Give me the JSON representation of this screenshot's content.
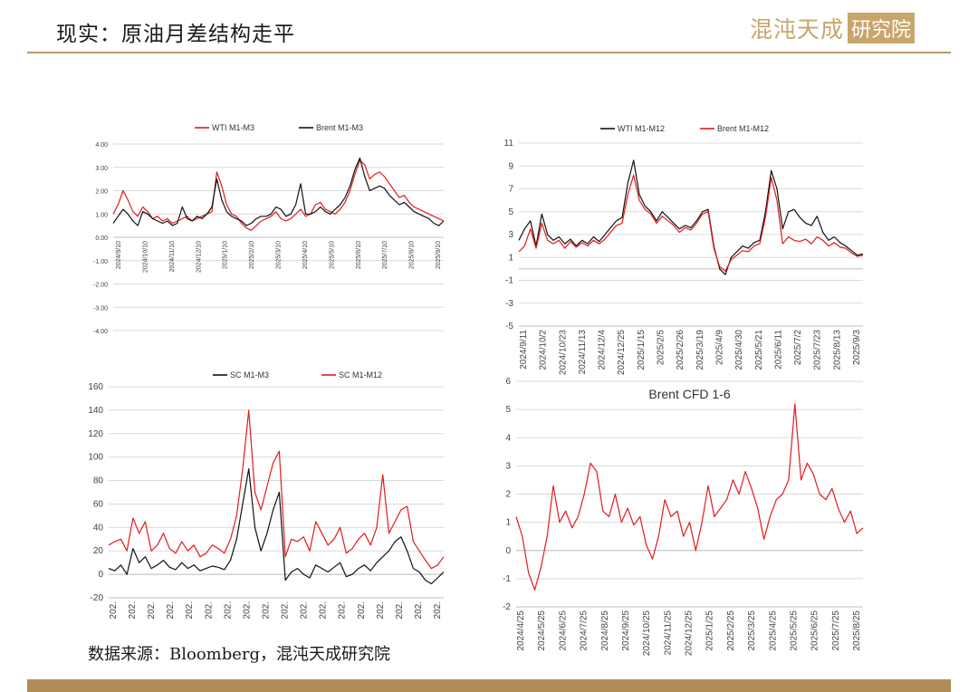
{
  "header": {
    "title": "现实：原油月差结构走平",
    "logo_main": "混沌天成",
    "logo_box": "研究院"
  },
  "footer": {
    "source": "数据来源：Bloomberg，混沌天成研究院"
  },
  "colors": {
    "red": "#e31a1c",
    "black": "#111111",
    "gold": "#b08d57"
  },
  "chart_data": [
    {
      "id": "c1",
      "type": "line",
      "title": "",
      "ylim": [
        -4,
        4
      ],
      "yticks": [
        "4.00",
        "3.00",
        "2.00",
        "1.00",
        "0.00",
        "-1.00",
        "-2.00",
        "-3.00",
        "-4.00"
      ],
      "ytick_values": [
        4,
        3,
        2,
        1,
        0,
        -1,
        -2,
        -3,
        -4
      ],
      "xticks": [
        "2024/9/10",
        "2024/10/10",
        "2024/11/10",
        "2024/12/10",
        "2025/1/10",
        "2025/2/10",
        "2025/3/10",
        "2025/4/10",
        "2025/5/10",
        "2025/6/10",
        "2025/7/10",
        "2025/8/10",
        "2025/9/10"
      ],
      "legend_position": "top",
      "series": [
        {
          "name": "WTI M1-M3",
          "color": "#e31a1c",
          "values": [
            1.0,
            1.4,
            2.0,
            1.6,
            1.1,
            0.9,
            1.3,
            1.1,
            0.8,
            0.9,
            0.7,
            0.8,
            0.6,
            0.7,
            0.8,
            0.9,
            0.7,
            0.8,
            0.9,
            1.0,
            1.1,
            2.8,
            2.2,
            1.4,
            1.0,
            0.9,
            0.6,
            0.4,
            0.3,
            0.5,
            0.7,
            0.8,
            0.9,
            1.1,
            0.8,
            0.7,
            0.8,
            1.0,
            1.2,
            0.9,
            1.0,
            1.4,
            1.5,
            1.2,
            1.1,
            1.0,
            1.2,
            1.5,
            2.0,
            2.7,
            3.3,
            3.1,
            2.5,
            2.7,
            2.8,
            2.6,
            2.3,
            2.0,
            1.7,
            1.8,
            1.5,
            1.3,
            1.2,
            1.1,
            1.0,
            0.9,
            0.8,
            0.7
          ]
        },
        {
          "name": "Brent M1-M3",
          "color": "#111111",
          "values": [
            0.6,
            0.9,
            1.2,
            1.0,
            0.7,
            0.5,
            1.1,
            1.0,
            0.8,
            0.7,
            0.6,
            0.7,
            0.5,
            0.6,
            1.3,
            0.8,
            0.7,
            0.9,
            0.8,
            1.0,
            1.3,
            2.5,
            1.6,
            1.1,
            0.9,
            0.8,
            0.7,
            0.5,
            0.6,
            0.8,
            0.9,
            0.9,
            1.0,
            1.3,
            1.2,
            0.9,
            1.0,
            1.4,
            2.3,
            1.0,
            1.0,
            1.1,
            1.3,
            1.1,
            1.0,
            1.2,
            1.4,
            1.7,
            2.2,
            2.9,
            3.4,
            2.6,
            2.0,
            2.1,
            2.2,
            2.1,
            1.8,
            1.6,
            1.4,
            1.5,
            1.3,
            1.1,
            1.0,
            0.9,
            0.8,
            0.6,
            0.5,
            0.7
          ]
        }
      ]
    },
    {
      "id": "c2",
      "type": "line",
      "title": "",
      "ylim": [
        -5,
        11
      ],
      "yticks": [
        "11",
        "9",
        "7",
        "5",
        "3",
        "1",
        "-1",
        "-3",
        "-5"
      ],
      "ytick_values": [
        11,
        9,
        7,
        5,
        3,
        1,
        -1,
        -3,
        -5
      ],
      "xticks": [
        "2024/9/11",
        "2024/10/2",
        "2024/10/23",
        "2024/11/13",
        "2024/12/4",
        "2024/12/25",
        "2025/1/15",
        "2025/2/5",
        "2025/2/26",
        "2025/3/19",
        "2025/4/9",
        "2025/4/30",
        "2025/5/21",
        "2025/6/11",
        "2025/7/2",
        "2025/7/23",
        "2025/8/13",
        "2025/9/3"
      ],
      "legend_position": "top",
      "series": [
        {
          "name": "WTI M1-M12",
          "color": "#111111",
          "values": [
            2.5,
            3.5,
            4.2,
            2.0,
            4.8,
            3.0,
            2.5,
            2.8,
            2.2,
            2.6,
            2.0,
            2.5,
            2.2,
            2.8,
            2.4,
            3.0,
            3.6,
            4.2,
            4.5,
            7.5,
            9.5,
            6.5,
            5.5,
            5.0,
            4.2,
            5.0,
            4.5,
            4.0,
            3.5,
            3.8,
            3.6,
            4.2,
            5.0,
            5.2,
            2.0,
            0.0,
            -0.5,
            1.0,
            1.5,
            2.0,
            1.8,
            2.3,
            2.5,
            5.0,
            8.6,
            7.0,
            3.5,
            5.0,
            5.2,
            4.5,
            4.0,
            3.8,
            4.6,
            3.2,
            2.5,
            2.8,
            2.3,
            2.0,
            1.6,
            1.2,
            1.3
          ]
        },
        {
          "name": "Brent M1-M12",
          "color": "#e31a1c",
          "values": [
            1.5,
            2.0,
            3.5,
            1.8,
            4.0,
            2.5,
            2.2,
            2.5,
            1.8,
            2.4,
            1.9,
            2.3,
            2.0,
            2.5,
            2.2,
            2.6,
            3.2,
            3.8,
            4.0,
            6.5,
            8.2,
            6.0,
            5.2,
            4.8,
            4.0,
            4.6,
            4.2,
            3.8,
            3.2,
            3.6,
            3.4,
            4.0,
            4.8,
            5.0,
            1.8,
            0.2,
            -0.2,
            0.8,
            1.2,
            1.6,
            1.5,
            2.0,
            2.2,
            4.5,
            8.0,
            6.0,
            2.2,
            2.8,
            2.5,
            2.4,
            2.6,
            2.2,
            2.8,
            2.5,
            2.0,
            2.3,
            1.9,
            1.8,
            1.4,
            1.1,
            1.2
          ]
        }
      ]
    },
    {
      "id": "c3",
      "type": "line",
      "title": "",
      "ylim": [
        -20,
        160
      ],
      "yticks": [
        "160",
        "140",
        "120",
        "100",
        "80",
        "60",
        "40",
        "20",
        "0",
        "-20"
      ],
      "ytick_values": [
        160,
        140,
        120,
        100,
        80,
        60,
        40,
        20,
        0,
        -20
      ],
      "xticks": [
        "202.",
        "202.",
        "202.",
        "202.",
        "202.",
        "202.",
        "202.",
        "202.",
        "202.",
        "202.",
        "202.",
        "202.",
        "202.",
        "202.",
        "202.",
        "202.",
        "202.",
        "202."
      ],
      "legend_position": "top",
      "series": [
        {
          "name": "SC M1-M3",
          "color": "#111111",
          "values": [
            5,
            3,
            8,
            0,
            22,
            10,
            15,
            5,
            8,
            12,
            6,
            4,
            10,
            5,
            8,
            3,
            5,
            7,
            6,
            4,
            12,
            30,
            60,
            90,
            40,
            20,
            35,
            55,
            70,
            -5,
            2,
            5,
            0,
            -3,
            8,
            5,
            2,
            6,
            10,
            -2,
            0,
            5,
            8,
            3,
            10,
            15,
            20,
            28,
            32,
            20,
            5,
            2,
            -5,
            -8,
            -3,
            2
          ]
        },
        {
          "name": "SC M1-M12",
          "color": "#e31a1c",
          "values": [
            25,
            28,
            30,
            20,
            48,
            35,
            45,
            20,
            25,
            35,
            22,
            18,
            28,
            20,
            25,
            15,
            18,
            25,
            22,
            18,
            30,
            50,
            90,
            140,
            70,
            55,
            75,
            95,
            105,
            15,
            30,
            28,
            32,
            20,
            45,
            35,
            25,
            30,
            40,
            18,
            22,
            30,
            35,
            25,
            40,
            85,
            35,
            45,
            55,
            58,
            28,
            20,
            12,
            5,
            8,
            15
          ]
        }
      ]
    },
    {
      "id": "c4",
      "type": "line",
      "title": "Brent CFD 1-6",
      "ylim": [
        -2,
        6
      ],
      "yticks": [
        "6",
        "5",
        "4",
        "3",
        "2",
        "1",
        "0",
        "-1",
        "-2"
      ],
      "ytick_values": [
        6,
        5,
        4,
        3,
        2,
        1,
        0,
        -1,
        -2
      ],
      "xticks": [
        "2024/4/25",
        "2024/5/25",
        "2024/6/25",
        "2024/7/25",
        "2024/8/25",
        "2024/9/25",
        "2024/10/25",
        "2024/11/25",
        "2024/12/25",
        "2025/1/25",
        "2025/2/25",
        "2025/3/25",
        "2025/4/25",
        "2025/5/25",
        "2025/6/25",
        "2025/7/25",
        "2025/8/25"
      ],
      "legend_position": "none",
      "series": [
        {
          "name": "",
          "color": "#e31a1c",
          "values": [
            1.2,
            0.5,
            -0.8,
            -1.4,
            -0.6,
            0.5,
            2.3,
            1.0,
            1.4,
            0.8,
            1.2,
            2.0,
            3.1,
            2.8,
            1.4,
            1.2,
            2.0,
            1.0,
            1.5,
            0.9,
            1.2,
            0.2,
            -0.3,
            0.5,
            1.8,
            1.2,
            1.4,
            0.5,
            1.0,
            0.0,
            1.0,
            2.3,
            1.2,
            1.5,
            1.8,
            2.5,
            2.0,
            2.8,
            2.2,
            1.5,
            0.4,
            1.2,
            1.8,
            2.0,
            2.5,
            5.2,
            2.5,
            3.1,
            2.7,
            2.0,
            1.8,
            2.2,
            1.5,
            1.0,
            1.4,
            0.6,
            0.8
          ]
        }
      ]
    }
  ]
}
